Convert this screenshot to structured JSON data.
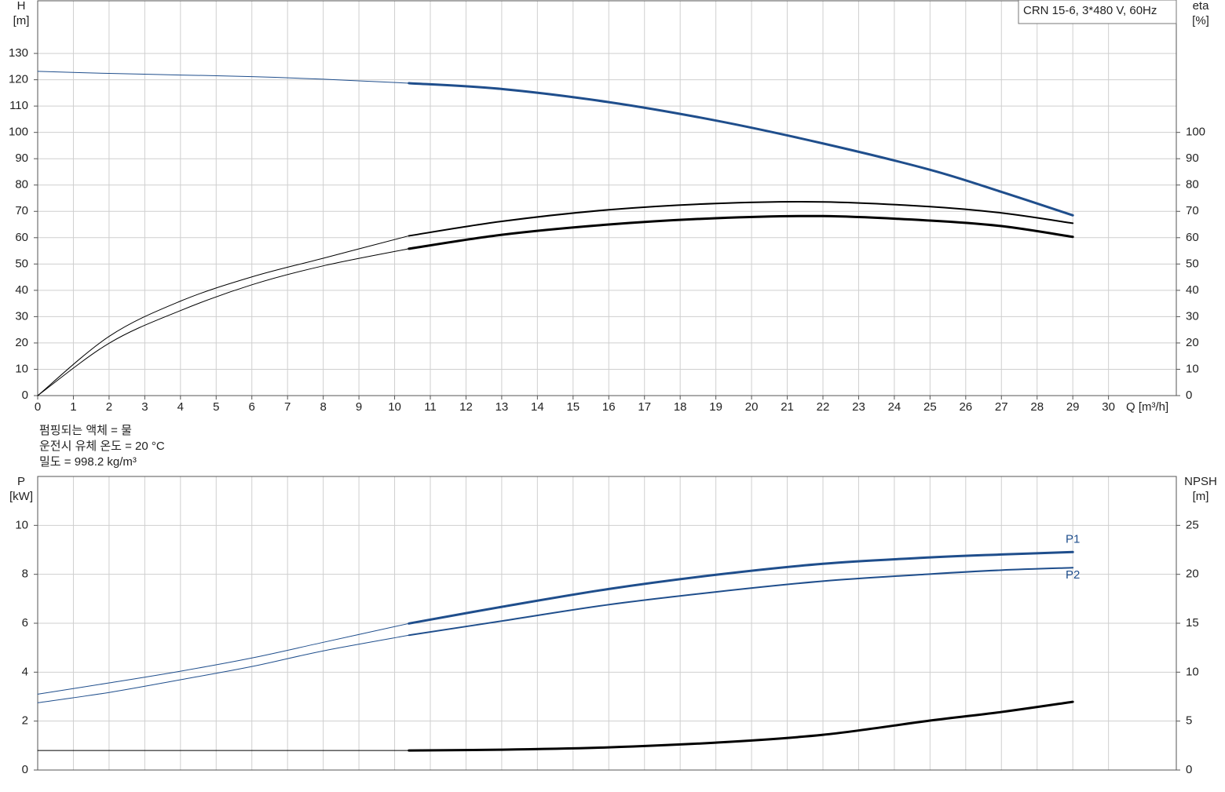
{
  "chart_data": [
    {
      "type": "line",
      "y_label": "H",
      "y_unit": "[m]",
      "y2_label": "eta",
      "y2_unit": "[%]",
      "x_label": "Q [m³/h]",
      "legend_box": "CRN 15-6, 3*480 V, 60Hz",
      "xlim": [
        0,
        31.9
      ],
      "xticks": [
        0,
        1,
        2,
        3,
        4,
        5,
        6,
        7,
        8,
        9,
        10,
        11,
        12,
        13,
        14,
        15,
        16,
        17,
        18,
        19,
        20,
        21,
        22,
        23,
        24,
        25,
        26,
        27,
        28,
        29,
        30
      ],
      "ylim": [
        0,
        150
      ],
      "yticks": [
        0,
        10,
        20,
        30,
        40,
        50,
        60,
        70,
        80,
        90,
        100,
        110,
        120,
        130
      ],
      "y2lim": [
        0,
        150
      ],
      "y2ticks": [
        0,
        10,
        20,
        30,
        40,
        50,
        60,
        70,
        80,
        90,
        100
      ],
      "grid": true,
      "x": [
        0,
        2,
        4,
        6,
        8,
        10.4,
        13,
        16,
        19,
        22,
        25,
        27,
        29
      ],
      "series": [
        {
          "color": "#1f4e8c",
          "width": 1,
          "values": [
            123.2,
            122.4,
            121.8,
            121.2,
            120.2,
            118.7,
            null,
            null,
            null,
            null,
            null,
            null,
            null
          ]
        },
        {
          "color": "#1f4e8c",
          "width": 3,
          "values": [
            null,
            null,
            null,
            null,
            null,
            118.7,
            116.5,
            111.5,
            104.5,
            95.8,
            85.8,
            77.4,
            68.5
          ]
        },
        {
          "color": "#000000",
          "width": 1,
          "axis": "y2",
          "values": [
            0,
            22.5,
            35.9,
            45.1,
            52.2,
            60.7,
            null,
            null,
            null,
            null,
            null,
            null,
            null
          ]
        },
        {
          "color": "#000000",
          "width": 2,
          "axis": "y2",
          "values": [
            null,
            null,
            null,
            null,
            null,
            60.7,
            66.2,
            70.6,
            73,
            73.6,
            71.8,
            69.4,
            65.5
          ]
        },
        {
          "color": "#000000",
          "width": 1,
          "axis": "y2",
          "values": [
            0,
            19.9,
            32.3,
            42.1,
            49.3,
            55.8,
            null,
            null,
            null,
            null,
            null,
            null,
            null
          ]
        },
        {
          "color": "#000000",
          "width": 3,
          "axis": "y2",
          "values": [
            null,
            null,
            null,
            null,
            null,
            55.8,
            61.1,
            65,
            67.4,
            68.2,
            66.5,
            64.4,
            60.3
          ]
        }
      ]
    },
    {
      "type": "line",
      "y_label": "P",
      "y_unit": "[kW]",
      "y2_label": "NPSH",
      "y2_unit": "[m]",
      "xlim": [
        0,
        31.9
      ],
      "ylim": [
        0,
        12
      ],
      "yticks": [
        0,
        2,
        4,
        6,
        8,
        10
      ],
      "y2lim": [
        0,
        30
      ],
      "y2ticks": [
        0,
        5,
        10,
        15,
        20,
        25
      ],
      "grid": true,
      "x": [
        0,
        2,
        4,
        6,
        8,
        10.4,
        13,
        16,
        19,
        22,
        25,
        27,
        29
      ],
      "series": [
        {
          "color": "#1f4e8c",
          "width": 1,
          "values": [
            3.1,
            3.56,
            4.04,
            4.58,
            5.22,
            5.99,
            null,
            null,
            null,
            null,
            null,
            null,
            null
          ]
        },
        {
          "name": "P1",
          "color": "#1f4e8c",
          "width": 3,
          "values": [
            null,
            null,
            null,
            null,
            null,
            5.99,
            6.67,
            7.4,
            7.98,
            8.43,
            8.69,
            8.81,
            8.91
          ]
        },
        {
          "color": "#1f4e8c",
          "width": 1,
          "values": [
            2.75,
            3.17,
            3.69,
            4.23,
            4.87,
            5.51,
            null,
            null,
            null,
            null,
            null,
            null,
            null
          ]
        },
        {
          "name": "P2",
          "color": "#1f4e8c",
          "width": 2,
          "values": [
            null,
            null,
            null,
            null,
            null,
            5.51,
            6.09,
            6.76,
            7.28,
            7.72,
            8.01,
            8.17,
            8.27
          ]
        },
        {
          "color": "#000000",
          "width": 1,
          "axis": "y2",
          "values": [
            2,
            2,
            2,
            2,
            2,
            2,
            null,
            null,
            null,
            null,
            null,
            null,
            null
          ]
        },
        {
          "color": "#000000",
          "width": 3,
          "axis": "y2",
          "values": [
            null,
            null,
            null,
            null,
            null,
            2,
            2.08,
            2.32,
            2.8,
            3.6,
            5.05,
            5.93,
            6.97
          ]
        }
      ]
    }
  ],
  "conditions": [
    "펌핑되는 액체 = 물",
    "운전시 유체 온도 = 20 °C",
    "밀도 = 998.2 kg/m³"
  ]
}
